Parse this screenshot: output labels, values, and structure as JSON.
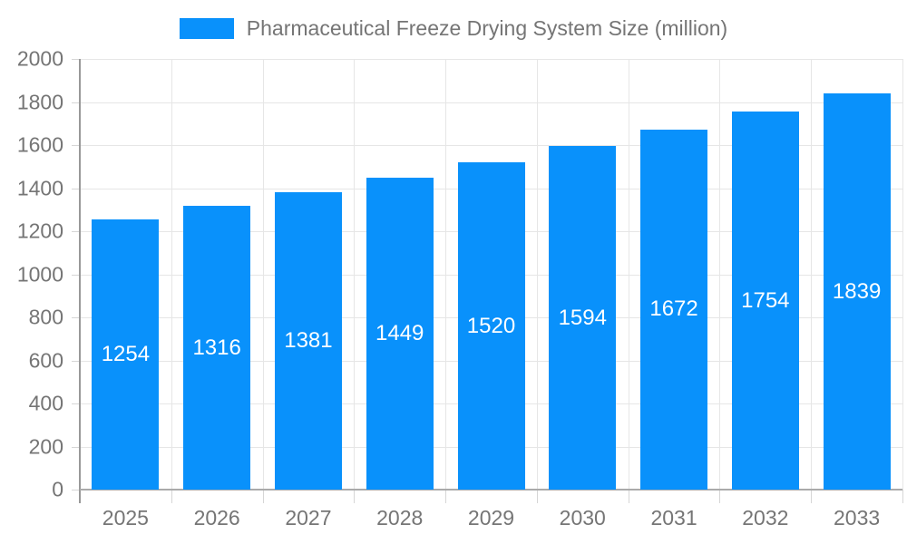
{
  "legend": {
    "label": "Pharmaceutical Freeze Drying System Size (million)"
  },
  "chart_data": {
    "type": "bar",
    "title": "Pharmaceutical Freeze Drying System Size (million)",
    "series_name": "Pharmaceutical Freeze Drying System Size (million)",
    "categories": [
      "2025",
      "2026",
      "2027",
      "2028",
      "2029",
      "2030",
      "2031",
      "2032",
      "2033"
    ],
    "values": [
      1254,
      1316,
      1381,
      1449,
      1520,
      1594,
      1672,
      1754,
      1839
    ],
    "xlabel": "",
    "ylabel": "",
    "ylim": [
      0,
      2000
    ],
    "ytick_step": 200,
    "yticks": [
      0,
      200,
      400,
      600,
      800,
      1000,
      1200,
      1400,
      1600,
      1800,
      2000
    ],
    "grid": true,
    "legend_position": "top-center",
    "value_labels": "inside-center",
    "colors": {
      "bar": "#0991fb",
      "value_label": "#ffffff",
      "axis_text": "#757575",
      "grid_line": "#e6e6e6",
      "axis_line": "#999999",
      "background": "#ffffff"
    }
  }
}
